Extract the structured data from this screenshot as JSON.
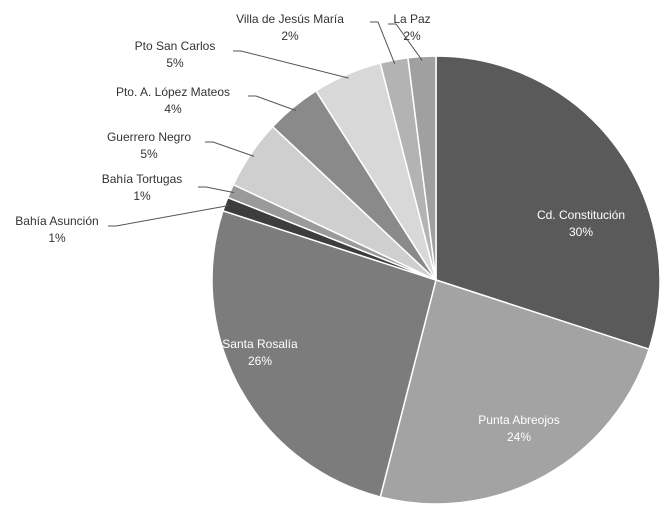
{
  "chart_data": {
    "type": "pie",
    "categories": [
      "Cd. Constitución",
      "Punta Abreojos",
      "Santa Rosalía",
      "Bahía Asunción",
      "Bahía Tortugas",
      "Guerrero Negro",
      "Pto. A. López Mateos",
      "Pto San Carlos",
      "Villa de Jesús María",
      "La Paz"
    ],
    "values": [
      30,
      24,
      26,
      1,
      1,
      5,
      4,
      5,
      2,
      2
    ],
    "value_labels": [
      "30%",
      "24%",
      "26%",
      "1%",
      "1%",
      "5%",
      "4%",
      "5%",
      "2%",
      "2%"
    ],
    "colors": [
      "#5a5a5a",
      "#a3a3a3",
      "#7c7c7c",
      "#3d3d3d",
      "#9a9a9a",
      "#cfcfcf",
      "#8a8a8a",
      "#d8d8d8",
      "#b3b3b3",
      "#a0a0a0"
    ]
  }
}
